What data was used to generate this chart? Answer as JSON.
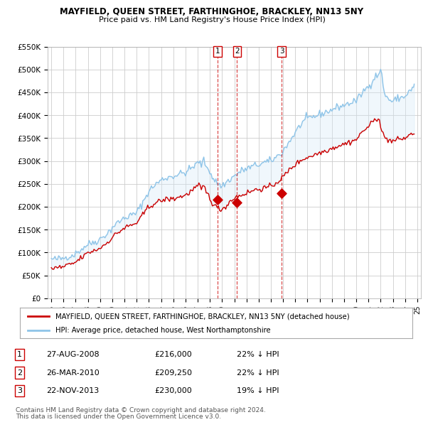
{
  "title": "MAYFIELD, QUEEN STREET, FARTHINGHOE, BRACKLEY, NN13 5NY",
  "subtitle": "Price paid vs. HM Land Registry's House Price Index (HPI)",
  "legend_line1": "MAYFIELD, QUEEN STREET, FARTHINGHOE, BRACKLEY, NN13 5NY (detached house)",
  "legend_line2": "HPI: Average price, detached house, West Northamptonshire",
  "footer1": "Contains HM Land Registry data © Crown copyright and database right 2024.",
  "footer2": "This data is licensed under the Open Government Licence v3.0.",
  "transactions": [
    {
      "num": 1,
      "date": "27-AUG-2008",
      "price": "£216,000",
      "hpi": "22% ↓ HPI",
      "year": 2008.65
    },
    {
      "num": 2,
      "date": "26-MAR-2010",
      "price": "£209,250",
      "hpi": "22% ↓ HPI",
      "year": 2010.23
    },
    {
      "num": 3,
      "date": "22-NOV-2013",
      "price": "£230,000",
      "hpi": "19% ↓ HPI",
      "year": 2013.89
    }
  ],
  "transaction_values": [
    216000,
    209250,
    230000
  ],
  "hpi_color": "#8ec4e8",
  "price_color": "#cc0000",
  "fill_color": "#d6eaf8",
  "vline_color": "#cc0000",
  "background_color": "#ffffff",
  "grid_color": "#cccccc",
  "ylim": [
    0,
    550000
  ],
  "xlim_start": 1995,
  "xlim_end": 2025,
  "yticks": [
    0,
    50000,
    100000,
    150000,
    200000,
    250000,
    300000,
    350000,
    400000,
    450000,
    500000,
    550000
  ],
  "ytick_labels": [
    "£0",
    "£50K",
    "£100K",
    "£150K",
    "£200K",
    "£250K",
    "£300K",
    "£350K",
    "£400K",
    "£450K",
    "£500K",
    "£550K"
  ],
  "hpi_years": [
    1995.0,
    1995.1,
    1995.2,
    1995.3,
    1995.4,
    1995.5,
    1995.6,
    1995.7,
    1995.8,
    1995.9,
    1996.0,
    1996.1,
    1996.2,
    1996.3,
    1996.4,
    1996.5,
    1996.6,
    1996.7,
    1996.8,
    1996.9,
    1997.0,
    1997.1,
    1997.2,
    1997.3,
    1997.4,
    1997.5,
    1997.6,
    1997.7,
    1997.8,
    1997.9,
    1998.0,
    1998.1,
    1998.2,
    1998.3,
    1998.4,
    1998.5,
    1998.6,
    1998.7,
    1998.8,
    1998.9,
    1999.0,
    1999.1,
    1999.2,
    1999.3,
    1999.4,
    1999.5,
    1999.6,
    1999.7,
    1999.8,
    1999.9,
    2000.0,
    2000.1,
    2000.2,
    2000.3,
    2000.4,
    2000.5,
    2000.6,
    2000.7,
    2000.8,
    2000.9,
    2001.0,
    2001.1,
    2001.2,
    2001.3,
    2001.4,
    2001.5,
    2001.6,
    2001.7,
    2001.8,
    2001.9,
    2002.0,
    2002.1,
    2002.2,
    2002.3,
    2002.4,
    2002.5,
    2002.6,
    2002.7,
    2002.8,
    2002.9,
    2003.0,
    2003.1,
    2003.2,
    2003.3,
    2003.4,
    2003.5,
    2003.6,
    2003.7,
    2003.8,
    2003.9,
    2004.0,
    2004.1,
    2004.2,
    2004.3,
    2004.4,
    2004.5,
    2004.6,
    2004.7,
    2004.8,
    2004.9,
    2005.0,
    2005.1,
    2005.2,
    2005.3,
    2005.4,
    2005.5,
    2005.6,
    2005.7,
    2005.8,
    2005.9,
    2006.0,
    2006.1,
    2006.2,
    2006.3,
    2006.4,
    2006.5,
    2006.6,
    2006.7,
    2006.8,
    2006.9,
    2007.0,
    2007.1,
    2007.2,
    2007.3,
    2007.4,
    2007.5,
    2007.6,
    2007.7,
    2007.8,
    2007.9,
    2008.0,
    2008.1,
    2008.2,
    2008.3,
    2008.4,
    2008.5,
    2008.6,
    2008.7,
    2008.8,
    2008.9,
    2009.0,
    2009.1,
    2009.2,
    2009.3,
    2009.4,
    2009.5,
    2009.6,
    2009.7,
    2009.8,
    2009.9,
    2010.0,
    2010.1,
    2010.2,
    2010.3,
    2010.4,
    2010.5,
    2010.6,
    2010.7,
    2010.8,
    2010.9,
    2011.0,
    2011.1,
    2011.2,
    2011.3,
    2011.4,
    2011.5,
    2011.6,
    2011.7,
    2011.8,
    2011.9,
    2012.0,
    2012.1,
    2012.2,
    2012.3,
    2012.4,
    2012.5,
    2012.6,
    2012.7,
    2012.8,
    2012.9,
    2013.0,
    2013.1,
    2013.2,
    2013.3,
    2013.4,
    2013.5,
    2013.6,
    2013.7,
    2013.8,
    2013.9,
    2014.0,
    2014.1,
    2014.2,
    2014.3,
    2014.4,
    2014.5,
    2014.6,
    2014.7,
    2014.8,
    2014.9,
    2015.0,
    2015.1,
    2015.2,
    2015.3,
    2015.4,
    2015.5,
    2015.6,
    2015.7,
    2015.8,
    2015.9,
    2016.0,
    2016.1,
    2016.2,
    2016.3,
    2016.4,
    2016.5,
    2016.6,
    2016.7,
    2016.8,
    2016.9,
    2017.0,
    2017.1,
    2017.2,
    2017.3,
    2017.4,
    2017.5,
    2017.6,
    2017.7,
    2017.8,
    2017.9,
    2018.0,
    2018.1,
    2018.2,
    2018.3,
    2018.4,
    2018.5,
    2018.6,
    2018.7,
    2018.8,
    2018.9,
    2019.0,
    2019.1,
    2019.2,
    2019.3,
    2019.4,
    2019.5,
    2019.6,
    2019.7,
    2019.8,
    2019.9,
    2020.0,
    2020.1,
    2020.2,
    2020.3,
    2020.4,
    2020.5,
    2020.6,
    2020.7,
    2020.8,
    2020.9,
    2021.0,
    2021.1,
    2021.2,
    2021.3,
    2021.4,
    2021.5,
    2021.6,
    2021.7,
    2021.8,
    2021.9,
    2022.0,
    2022.1,
    2022.2,
    2022.3,
    2022.4,
    2022.5,
    2022.6,
    2022.7,
    2022.8,
    2022.9,
    2023.0,
    2023.1,
    2023.2,
    2023.3,
    2023.4,
    2023.5,
    2023.6,
    2023.7,
    2023.8,
    2023.9,
    2024.0,
    2024.1,
    2024.2,
    2024.3,
    2024.4,
    2024.5,
    2024.6,
    2024.7,
    2024.75
  ],
  "hpi_base": [
    85000,
    86000,
    84000,
    85500,
    86000,
    85000,
    86500,
    87000,
    86000,
    87000,
    88000,
    89000,
    90000,
    91000,
    92000,
    91500,
    93000,
    94000,
    95000,
    96000,
    98000,
    100000,
    102000,
    104000,
    106000,
    108000,
    110000,
    112000,
    114000,
    116000,
    118000,
    119000,
    120000,
    121000,
    122000,
    123000,
    124000,
    125000,
    126000,
    127000,
    130000,
    132000,
    134000,
    136000,
    138000,
    140000,
    142000,
    145000,
    148000,
    150000,
    155000,
    158000,
    160000,
    162000,
    164000,
    166000,
    168000,
    170000,
    172000,
    174000,
    175000,
    177000,
    178000,
    179000,
    180000,
    181000,
    182000,
    183000,
    184000,
    185000,
    188000,
    192000,
    196000,
    200000,
    205000,
    210000,
    215000,
    220000,
    225000,
    230000,
    234000,
    237000,
    240000,
    243000,
    246000,
    248000,
    250000,
    252000,
    254000,
    256000,
    258000,
    260000,
    261000,
    262000,
    263000,
    264000,
    265000,
    265500,
    266000,
    266500,
    267000,
    268000,
    269000,
    270000,
    271000,
    272000,
    272500,
    273000,
    273500,
    274000,
    275000,
    277000,
    279000,
    281000,
    283000,
    285000,
    287000,
    289000,
    291000,
    293000,
    296000,
    299000,
    295000,
    292000,
    298000,
    300000,
    295000,
    290000,
    285000,
    282000,
    278000,
    272000,
    265000,
    260000,
    258000,
    255000,
    252000,
    250000,
    248000,
    246000,
    244000,
    248000,
    250000,
    252000,
    255000,
    257000,
    259000,
    261000,
    263000,
    265000,
    267000,
    269000,
    271000,
    273000,
    275000,
    277000,
    279000,
    280000,
    281000,
    282000,
    283000,
    284000,
    285000,
    286000,
    287000,
    288000,
    289000,
    290000,
    291000,
    292000,
    292000,
    293000,
    294000,
    295000,
    296000,
    297000,
    297500,
    298000,
    298500,
    299000,
    300000,
    302000,
    304000,
    306000,
    308000,
    310000,
    312000,
    314000,
    316000,
    318000,
    322000,
    326000,
    330000,
    334000,
    338000,
    342000,
    346000,
    350000,
    354000,
    358000,
    362000,
    366000,
    370000,
    374000,
    378000,
    382000,
    385000,
    387000,
    389000,
    391000,
    392000,
    393000,
    394000,
    395000,
    396000,
    397000,
    398000,
    399000,
    400000,
    401000,
    402000,
    403000,
    404000,
    405000,
    406000,
    407000,
    408000,
    409000,
    410000,
    411000,
    412000,
    413000,
    415000,
    416000,
    417000,
    418000,
    419000,
    420000,
    420500,
    421000,
    422000,
    423000,
    424000,
    425000,
    426000,
    427000,
    428000,
    429000,
    430000,
    431000,
    432000,
    435000,
    438000,
    442000,
    446000,
    450000,
    453000,
    456000,
    458000,
    460000,
    463000,
    467000,
    471000,
    475000,
    479000,
    483000,
    486000,
    488000,
    490000,
    492000,
    495000,
    496000,
    460000,
    450000,
    445000,
    440000,
    437000,
    435000,
    433000,
    431000,
    430000,
    432000,
    434000,
    436000,
    437000,
    438000,
    438500,
    439000,
    439500,
    440000,
    442000,
    445000,
    448000,
    451000,
    454000,
    456000,
    458000,
    460000,
    465000
  ],
  "price_base": [
    65000,
    66000,
    65000,
    66500,
    67000,
    66000,
    67500,
    68000,
    67000,
    68000,
    69000,
    70000,
    71000,
    72000,
    73000,
    72500,
    74000,
    75000,
    76000,
    77000,
    79000,
    81000,
    83000,
    85000,
    87000,
    89000,
    91000,
    93000,
    95000,
    97000,
    99000,
    100000,
    101000,
    102000,
    103000,
    104000,
    105000,
    106000,
    107000,
    108000,
    110000,
    112000,
    114000,
    116000,
    118000,
    120000,
    122000,
    125000,
    128000,
    130000,
    133000,
    136000,
    138000,
    140000,
    142000,
    144000,
    146000,
    148000,
    150000,
    152000,
    153000,
    155000,
    156000,
    157000,
    158000,
    159000,
    160000,
    161000,
    162000,
    163000,
    165000,
    168000,
    171000,
    174000,
    178000,
    182000,
    186000,
    190000,
    194000,
    197000,
    199000,
    201000,
    203000,
    205000,
    207000,
    208000,
    209000,
    210000,
    211000,
    212000,
    213000,
    214000,
    215000,
    215500,
    216000,
    216500,
    217000,
    217000,
    217000,
    217000,
    217000,
    218000,
    219000,
    220000,
    221000,
    222000,
    222500,
    223000,
    223500,
    224000,
    225000,
    227000,
    229000,
    231000,
    233000,
    235000,
    237000,
    239000,
    241000,
    243000,
    245000,
    246000,
    242000,
    238000,
    243000,
    244000,
    239000,
    233000,
    228000,
    225000,
    220000,
    215000,
    208000,
    204000,
    202000,
    200000,
    198000,
    197000,
    196000,
    195000,
    194000,
    197000,
    199000,
    201000,
    204000,
    207000,
    210000,
    213000,
    215000,
    217000,
    219000,
    221000,
    222000,
    223000,
    224000,
    225000,
    226000,
    227000,
    228000,
    229000,
    230000,
    231000,
    232000,
    233000,
    234000,
    235000,
    236000,
    237000,
    237500,
    238000,
    238500,
    239000,
    239500,
    240000,
    240500,
    241000,
    241500,
    242000,
    242500,
    243000,
    244000,
    246000,
    248000,
    250000,
    252000,
    254000,
    256000,
    258000,
    260000,
    262000,
    265000,
    268000,
    271000,
    274000,
    277000,
    280000,
    283000,
    286000,
    288000,
    290000,
    292000,
    294000,
    296000,
    298000,
    300000,
    302000,
    304000,
    305000,
    306000,
    307000,
    308000,
    309000,
    310000,
    311000,
    312000,
    313000,
    314000,
    315000,
    316000,
    317000,
    318000,
    319000,
    320000,
    321000,
    322000,
    323000,
    324000,
    325000,
    326000,
    327000,
    328000,
    329000,
    330000,
    331000,
    332000,
    333000,
    334000,
    335000,
    335500,
    336000,
    337000,
    338000,
    339000,
    340000,
    341000,
    342000,
    343000,
    344000,
    345000,
    346000,
    347000,
    350000,
    353000,
    357000,
    361000,
    364000,
    367000,
    369000,
    371000,
    373000,
    375000,
    378000,
    381000,
    384000,
    387000,
    389000,
    391000,
    393000,
    395000,
    396000,
    374000,
    365000,
    358000,
    353000,
    350000,
    348000,
    347000,
    346000,
    345000,
    344000,
    343000,
    344000,
    345000,
    346000,
    347000,
    347500,
    348000,
    348500,
    349000,
    349500,
    350000,
    352000,
    354000,
    356000,
    357000,
    358000,
    359000,
    360000,
    362000
  ]
}
